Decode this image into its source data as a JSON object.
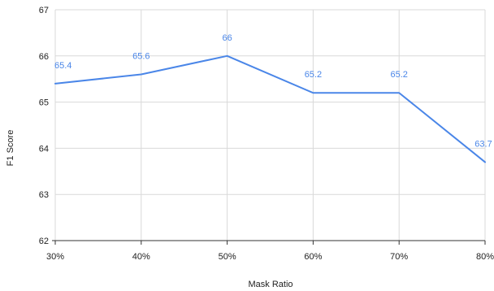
{
  "chart_data": {
    "type": "line",
    "title": "",
    "xlabel": "Mask Ratio",
    "ylabel": "F1 Score",
    "categories": [
      "30%",
      "40%",
      "50%",
      "60%",
      "70%",
      "80%"
    ],
    "series": [
      {
        "values": [
          65.4,
          65.6,
          66,
          65.2,
          65.2,
          63.7
        ],
        "data_labels": [
          "65.4",
          "65.6",
          "66",
          "65.2",
          "65.2",
          "63.7"
        ]
      }
    ],
    "ylim": [
      62,
      67
    ],
    "yticks": [
      "62",
      "63",
      "64",
      "65",
      "66",
      "67"
    ],
    "grid": true,
    "legend": "none"
  },
  "colors": {
    "line": "#4a86e8",
    "label": "#4a86e8"
  }
}
